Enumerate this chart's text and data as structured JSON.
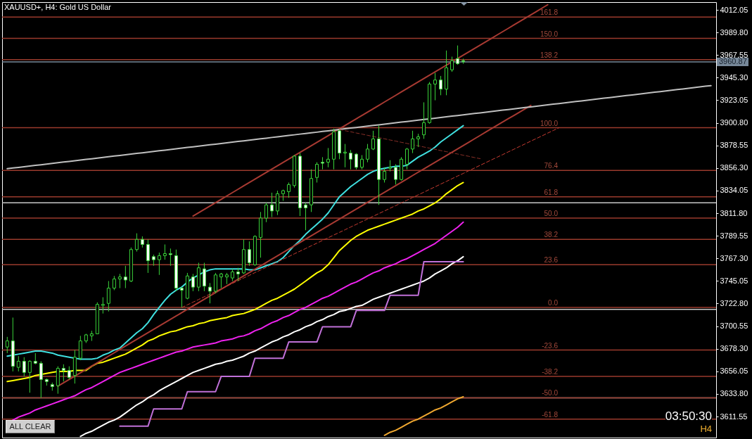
{
  "chart_data": {
    "type": "candlestick",
    "title": "XAUUSD+, H4: Gold US Dollar",
    "categories": [
      null,
      null,
      null,
      null,
      null,
      null,
      null,
      null,
      null,
      null,
      null,
      null,
      null,
      null,
      null,
      null,
      null,
      null,
      null,
      null,
      null,
      null,
      null,
      null,
      null,
      null,
      null,
      null,
      null,
      null,
      null,
      null,
      null,
      null,
      null,
      null,
      null,
      null,
      null,
      null,
      null,
      null,
      null,
      null,
      null,
      null,
      null,
      null,
      null,
      null,
      null,
      null,
      null,
      null,
      null,
      null,
      null,
      null,
      null,
      null,
      null,
      null,
      null,
      null,
      null,
      null,
      null,
      null,
      null,
      null,
      null,
      null,
      null,
      null,
      null,
      null,
      null,
      null,
      null,
      null,
      null,
      null,
      null,
      null,
      null,
      null,
      null,
      null,
      null,
      null,
      null,
      null,
      null,
      null,
      null,
      null,
      null,
      null,
      null,
      null,
      null,
      null,
      null,
      null,
      null,
      null,
      null,
      null,
      null,
      null,
      null,
      null,
      null,
      null,
      null,
      null,
      null,
      null,
      null,
      null,
      null,
      null,
      null,
      null,
      null,
      null
    ],
    "ohlc": [
      [
        3680,
        3690,
        3674,
        3686
      ],
      [
        3686,
        3709,
        3656,
        3661
      ],
      [
        3660,
        3671,
        3656,
        3666
      ],
      [
        3666,
        3670,
        3651,
        3655
      ],
      [
        3655,
        3667,
        3635,
        3666
      ],
      [
        3666,
        3674,
        3663,
        3664
      ],
      [
        3664,
        3666,
        3630,
        3648
      ],
      [
        3648,
        3649,
        3642,
        3646
      ],
      [
        3643,
        3645,
        3637,
        3641
      ],
      [
        3642,
        3661,
        3634,
        3659
      ],
      [
        3659,
        3663,
        3646,
        3657
      ],
      [
        3657,
        3661,
        3648,
        3650
      ],
      [
        3652,
        3677,
        3644,
        3670
      ],
      [
        3669,
        3691,
        3667,
        3686
      ],
      [
        3686,
        3693,
        3684,
        3692
      ],
      [
        3691,
        3696,
        3686,
        3693
      ],
      [
        3693,
        3724,
        3693,
        3722
      ],
      [
        3721,
        3729,
        3713,
        3722
      ],
      [
        3723,
        3745,
        3715,
        3738
      ],
      [
        3738,
        3750,
        3736,
        3747
      ],
      [
        3747,
        3752,
        3738,
        3749
      ],
      [
        3749,
        3760,
        3738,
        3746
      ],
      [
        3745,
        3778,
        3744,
        3776
      ],
      [
        3776,
        3792,
        3774,
        3786
      ],
      [
        3786,
        3789,
        3778,
        3781
      ],
      [
        3781,
        3786,
        3753,
        3765
      ],
      [
        3769,
        3771,
        3760,
        3766
      ],
      [
        3766,
        3773,
        3751,
        3770
      ],
      [
        3770,
        3781,
        3766,
        3772
      ],
      [
        3772,
        3777,
        3760,
        3771
      ],
      [
        3770,
        3776,
        3735,
        3738
      ],
      [
        3738,
        3739,
        3719,
        3736
      ],
      [
        3728,
        3753,
        3727,
        3750
      ],
      [
        3749,
        3752,
        3735,
        3739
      ],
      [
        3739,
        3763,
        3735,
        3758
      ],
      [
        3757,
        3763,
        3735,
        3740
      ],
      [
        3739,
        3743,
        3723,
        3735
      ],
      [
        3735,
        3753,
        3733,
        3751
      ],
      [
        3749,
        3753,
        3738,
        3752
      ],
      [
        3749,
        3753,
        3742,
        3751
      ],
      [
        3748,
        3757,
        3745,
        3754
      ],
      [
        3754,
        3758,
        3745,
        3752
      ],
      [
        3753,
        3786,
        3752,
        3776
      ],
      [
        3776,
        3784,
        3760,
        3763
      ],
      [
        3761,
        3790,
        3760,
        3789
      ],
      [
        3788,
        3813,
        3768,
        3807
      ],
      [
        3807,
        3822,
        3803,
        3820
      ],
      [
        3820,
        3832,
        3808,
        3814
      ],
      [
        3814,
        3834,
        3810,
        3831
      ],
      [
        3831,
        3835,
        3824,
        3834
      ],
      [
        3833,
        3842,
        3827,
        3840
      ],
      [
        3839,
        3869,
        3837,
        3868
      ],
      [
        3868,
        3871,
        3809,
        3817
      ],
      [
        3820,
        3822,
        3795,
        3817
      ],
      [
        3820,
        3855,
        3813,
        3846
      ],
      [
        3847,
        3862,
        3842,
        3860
      ],
      [
        3862,
        3867,
        3855,
        3861
      ],
      [
        3862,
        3876,
        3857,
        3865
      ],
      [
        3865,
        3895,
        3855,
        3892
      ],
      [
        3893,
        3894,
        3865,
        3871
      ],
      [
        3871,
        3880,
        3857,
        3872
      ],
      [
        3871,
        3874,
        3855,
        3865
      ],
      [
        3870,
        3871,
        3855,
        3857
      ],
      [
        3857,
        3869,
        3855,
        3865
      ],
      [
        3865,
        3880,
        3862,
        3875
      ],
      [
        3875,
        3893,
        3874,
        3885
      ],
      [
        3885,
        3898,
        3820,
        3845
      ],
      [
        3845,
        3857,
        3842,
        3853
      ],
      [
        3856,
        3864,
        3853,
        3857
      ],
      [
        3857,
        3860,
        3840,
        3845
      ],
      [
        3845,
        3867,
        3844,
        3865
      ],
      [
        3860,
        3876,
        3855,
        3875
      ],
      [
        3875,
        3893,
        3871,
        3885
      ],
      [
        3885,
        3890,
        3877,
        3887
      ],
      [
        3889,
        3921,
        3885,
        3901
      ],
      [
        3901,
        3941,
        3900,
        3939
      ],
      [
        3939,
        3950,
        3923,
        3943
      ],
      [
        3943,
        3947,
        3928,
        3934
      ],
      [
        3934,
        3972,
        3928,
        3955
      ],
      [
        3953,
        3966,
        3951,
        3962
      ],
      [
        3964,
        3977,
        3958,
        3959
      ],
      [
        3962,
        3964,
        3959,
        3961
      ],
      null,
      null,
      null,
      null,
      null,
      null,
      null,
      null,
      null,
      null,
      null,
      null,
      null,
      null,
      null,
      null,
      null,
      null,
      null,
      null,
      null,
      null,
      null,
      null,
      null,
      null,
      null,
      null,
      null,
      null,
      null,
      null,
      null,
      null,
      null,
      null,
      null,
      null,
      null,
      null,
      null,
      null,
      null,
      null
    ],
    "color": "#3ad43a",
    "colors": [
      "#000000",
      "#ffffff",
      "#000000",
      "#ffffff",
      "#000000",
      "#ffffff",
      "#ffffff",
      "#ffffff",
      "#ffffff",
      "#000000",
      "#ffffff",
      "#ffffff",
      "#000000",
      "#000000",
      "#000000",
      "#000000",
      "#000000",
      "#000000",
      "#000000",
      "#000000",
      "#000000",
      "#ffffff",
      "#000000",
      "#000000",
      "#ffffff",
      "#ffffff",
      "#ffffff",
      "#000000",
      "#000000",
      "#ffffff",
      "#ffffff",
      "#ffffff",
      "#000000",
      "#ffffff",
      "#000000",
      "#ffffff",
      "#ffffff",
      "#000000",
      "#000000",
      "#000000",
      "#000000",
      "#ffffff",
      "#000000",
      "#ffffff",
      "#000000",
      "#000000",
      "#000000",
      "#ffffff",
      "#000000",
      "#000000",
      "#000000",
      "#000000",
      "#ffffff",
      "#ffffff",
      "#000000",
      "#000000",
      "#ffffff",
      "#000000",
      "#000000",
      "#ffffff",
      "#000000",
      "#ffffff",
      "#ffffff",
      "#000000",
      "#000000",
      "#000000",
      "#ffffff",
      "#000000",
      "#000000",
      "#ffffff",
      "#000000",
      "#000000",
      "#000000",
      "#000000",
      "#000000",
      "#000000",
      "#000000",
      "#ffffff",
      "#000000",
      "#000000",
      "#ffffff",
      "#ffffff",
      null,
      null,
      null,
      null,
      null,
      null,
      null,
      null,
      null,
      null,
      null,
      null,
      null,
      null,
      null,
      null,
      null,
      null,
      null,
      null,
      null,
      null,
      null,
      null,
      null,
      null,
      null,
      null,
      null,
      null,
      null,
      null,
      null,
      null,
      null,
      null,
      null,
      null,
      null,
      null,
      null,
      null,
      null,
      null
    ],
    "series": [
      {
        "type": "line",
        "color": "#40e0e0",
        "values": [
          3671,
          3672,
          3673,
          3674,
          3675,
          3676,
          3676,
          3675,
          3674,
          3672,
          3671,
          3670,
          3669,
          3668,
          3668,
          3668,
          3669,
          3672,
          3674,
          3677,
          3679,
          3684,
          3689,
          3694,
          3698,
          3704,
          3712,
          3719,
          3726,
          3732,
          3736,
          3739,
          3744,
          3748,
          3751,
          3754,
          3756,
          3757,
          3757,
          3757,
          3757,
          3757,
          3757,
          3756,
          3756,
          3758,
          3760,
          3762,
          3764,
          3768,
          3774,
          3780,
          3785,
          3791,
          3796,
          3801,
          3806,
          3812,
          3820,
          3828,
          3833,
          3838,
          3842,
          3846,
          3850,
          3853,
          3855,
          3856,
          3857,
          3858,
          3858,
          3859,
          3863,
          3867,
          3870,
          3873,
          3877,
          3882,
          3886,
          3890,
          3894,
          3898,
          null,
          null,
          null,
          null,
          null,
          null,
          null,
          null,
          null,
          null,
          null,
          null,
          null,
          null,
          null,
          null,
          null,
          null,
          null,
          null,
          null,
          null,
          null,
          null,
          null,
          null,
          null,
          null,
          null,
          null,
          null,
          null,
          null,
          null,
          null,
          null,
          null,
          null,
          null,
          null,
          null,
          null,
          null,
          null
        ]
      },
      {
        "type": "line",
        "color": "#ffff00",
        "values": [
          3646,
          3647,
          3648,
          3649,
          3650,
          3652,
          3653,
          3654,
          3655,
          3656,
          3656,
          3656,
          3657,
          3657,
          3657,
          3661,
          3664,
          3665,
          3667,
          3669,
          3671,
          3673,
          3676,
          3679,
          3682,
          3686,
          3688,
          3691,
          3693,
          3695,
          3696,
          3698,
          3700,
          3701,
          3703,
          3704,
          3706,
          3707,
          3708,
          3709,
          3711,
          3712,
          3713,
          3715,
          3717,
          3720,
          3723,
          3726,
          3728,
          3731,
          3734,
          3737,
          3741,
          3745,
          3749,
          3753,
          3756,
          3761,
          3768,
          3775,
          3780,
          3785,
          3789,
          3792,
          3795,
          3797,
          3799,
          3801,
          3803,
          3805,
          3807,
          3809,
          3811,
          3814,
          3816,
          3819,
          3822,
          3826,
          3831,
          3835,
          3839,
          3842,
          null,
          null,
          null,
          null,
          null,
          null,
          null,
          null,
          null,
          null,
          null,
          null,
          null,
          null,
          null,
          null,
          null,
          null,
          null,
          null,
          null,
          null,
          null,
          null,
          null,
          null,
          null,
          null,
          null,
          null,
          null,
          null,
          null,
          null,
          null,
          null,
          null,
          null,
          null,
          null,
          null,
          null,
          null,
          null
        ]
      },
      {
        "type": "line",
        "color": "#ee22ee",
        "values": [
          null,
          3608,
          3611,
          3613,
          3615,
          3618,
          3620,
          3622,
          3624,
          3626,
          3628,
          3630,
          3632,
          3635,
          3638,
          3640,
          3643,
          3646,
          3649,
          3652,
          3655,
          3657,
          3659,
          3661,
          3663,
          3665,
          3667,
          3669,
          3671,
          3673,
          3675,
          3676,
          3678,
          3680,
          3681,
          3682,
          3683,
          3684,
          3686,
          3687,
          3688,
          3690,
          3691,
          3693,
          3696,
          3698,
          3701,
          3704,
          3706,
          3709,
          3711,
          3714,
          3717,
          3719,
          3722,
          3725,
          3728,
          3730,
          3733,
          3736,
          3739,
          3742,
          3744,
          3747,
          3750,
          3753,
          3755,
          3758,
          3760,
          3762,
          3765,
          3767,
          3770,
          3773,
          3776,
          3779,
          3782,
          3786,
          3790,
          3794,
          3798,
          3803,
          null,
          null,
          null,
          null,
          null,
          null,
          null,
          null,
          null,
          null,
          null,
          null,
          null,
          null,
          null,
          null,
          null,
          null,
          null,
          null,
          null,
          null,
          null,
          null,
          null,
          null,
          null,
          null,
          null,
          null,
          null,
          null,
          null,
          null,
          null,
          null,
          null,
          null,
          null,
          null,
          null,
          null,
          null,
          null
        ]
      },
      {
        "type": "line",
        "color": "#ffffff",
        "values": [
          null,
          null,
          null,
          null,
          null,
          null,
          null,
          null,
          null,
          null,
          null,
          null,
          null,
          3592,
          3595,
          3597,
          3600,
          3603,
          3606,
          3608,
          3611,
          3615,
          3619,
          3623,
          3626,
          3630,
          3633,
          3637,
          3640,
          3643,
          3646,
          3649,
          3652,
          3655,
          3657,
          3659,
          3661,
          3663,
          3664,
          3666,
          3667,
          3669,
          3671,
          3674,
          3676,
          3679,
          3682,
          3685,
          3687,
          3690,
          3692,
          3695,
          3697,
          3700,
          3702,
          3705,
          3707,
          3710,
          3712,
          3715,
          3716,
          3718,
          3720,
          3721,
          3724,
          3727,
          3729,
          3731,
          3733,
          3735,
          3737,
          3739,
          3741,
          3743,
          3745,
          3748,
          3752,
          3755,
          3758,
          3762,
          3765,
          3769,
          null,
          null,
          null,
          null,
          null,
          null,
          null,
          null,
          null,
          null,
          null,
          null,
          null,
          null,
          null,
          null,
          null,
          null,
          null,
          null,
          null,
          null,
          null,
          null,
          null,
          null,
          null,
          null,
          null,
          null,
          null,
          null,
          null,
          null,
          null,
          null,
          null,
          null,
          null,
          null,
          null,
          null,
          null,
          null
        ]
      },
      {
        "type": "line",
        "color": "#c070d8",
        "values": [
          null,
          null,
          null,
          null,
          null,
          null,
          null,
          null,
          null,
          null,
          null,
          null,
          null,
          null,
          null,
          null,
          null,
          null,
          null,
          null,
          3602,
          3602,
          3602,
          3602,
          3602,
          3602,
          3619,
          3619,
          3619,
          3619,
          3619,
          3619,
          3636,
          3636,
          3636,
          3636,
          3636,
          3636,
          3651,
          3651,
          3651,
          3651,
          3651,
          3651,
          3669,
          3669,
          3669,
          3669,
          3669,
          3669,
          3685,
          3685,
          3685,
          3685,
          3685,
          3685,
          3700,
          3700,
          3700,
          3700,
          3700,
          3700,
          3716,
          3716,
          3716,
          3716,
          3716,
          3716,
          3731,
          3731,
          3731,
          3731,
          3731,
          3731,
          3764,
          3764,
          3764,
          3764,
          3764,
          3764,
          3764,
          3764,
          null,
          null,
          null,
          null,
          null,
          null,
          null,
          null,
          null,
          null,
          null,
          null,
          null,
          null,
          null,
          null,
          null,
          null,
          null,
          null,
          null,
          null,
          null,
          null,
          null,
          null,
          null,
          null,
          null,
          null,
          null,
          null,
          null,
          null,
          null,
          null,
          null,
          null,
          null,
          null,
          null,
          null,
          null,
          null
        ]
      },
      {
        "type": "line",
        "color": "#f0a830",
        "values": [
          null,
          null,
          null,
          null,
          null,
          null,
          null,
          null,
          null,
          null,
          null,
          null,
          null,
          null,
          null,
          null,
          null,
          null,
          null,
          null,
          null,
          null,
          null,
          null,
          null,
          null,
          null,
          null,
          null,
          null,
          null,
          null,
          null,
          null,
          null,
          null,
          null,
          null,
          null,
          null,
          null,
          null,
          null,
          null,
          null,
          null,
          null,
          null,
          null,
          null,
          null,
          null,
          null,
          null,
          null,
          null,
          null,
          null,
          null,
          null,
          null,
          null,
          null,
          null,
          null,
          null,
          null,
          3593,
          3596,
          3598,
          3601,
          3604,
          3607,
          3609,
          3612,
          3615,
          3618,
          3620,
          3623,
          3626,
          3629,
          3631,
          null,
          null,
          null,
          null,
          null,
          null,
          null,
          null,
          null,
          null,
          null,
          null,
          null,
          null,
          null,
          null,
          null,
          null,
          null,
          null,
          null,
          null,
          null,
          null,
          null,
          null,
          null,
          null,
          null,
          null,
          null,
          null,
          null,
          null,
          null,
          null,
          null,
          null,
          null,
          null,
          null,
          null,
          null,
          null
        ]
      },
      {
        "type": "line",
        "color": "#a83a32",
        "values": [
          null,
          null,
          null,
          null,
          null,
          null,
          null,
          null,
          null,
          null,
          null,
          null,
          null,
          null,
          null,
          null,
          null,
          null,
          null,
          null,
          null,
          null,
          null,
          null,
          null,
          null,
          null,
          null,
          null,
          null,
          null,
          null,
          null,
          3809.0,
          3812.3,
          3815.6,
          3818.9,
          3822.2,
          3825.5,
          3828.8,
          3832.1,
          3835.4,
          3838.7,
          3842.0,
          3845.3,
          3848.6,
          3851.9,
          3855.2,
          3858.5,
          3861.8,
          3865.1,
          3868.4,
          3871.7,
          3875.0,
          3878.3,
          3881.6,
          3884.9,
          3888.2,
          3891.6,
          3894.9,
          3898.2,
          3901.5,
          3904.8,
          3908.1,
          3911.4,
          3914.7,
          3918.0,
          3921.3,
          3924.6,
          3927.9,
          3931.2,
          3934.5,
          3937.8,
          3941.1,
          3944.4,
          3947.7,
          3951.0,
          3954.3,
          3957.6,
          3960.9,
          3964.2,
          3967.5,
          3970.8,
          3974.1,
          3977.4,
          3980.7,
          3984.0,
          3987.3,
          3990.6,
          3993.9,
          3997.3,
          4000.6,
          4003.9,
          4007.2,
          4010.5,
          4013.8,
          4017.1,
          null,
          null,
          null,
          null,
          null,
          null,
          null,
          null,
          null,
          null,
          null,
          null,
          null,
          null,
          null,
          null,
          null,
          null,
          null,
          null,
          null,
          null,
          null,
          null,
          null,
          null,
          null,
          null,
          null
        ]
      },
      {
        "type": "line",
        "color": "#a83a32",
        "values": [
          null,
          null,
          null,
          null,
          null,
          null,
          null,
          null,
          null,
          3641.4,
          3644.7,
          3648.0,
          3651.3,
          3654.6,
          3657.9,
          3661.2,
          3664.5,
          3667.7,
          3671.0,
          3674.3,
          3677.6,
          3680.9,
          3684.2,
          3687.5,
          3690.8,
          3694.1,
          3697.4,
          3700.7,
          3704.0,
          3707.3,
          3710.6,
          3713.8,
          3717.1,
          3720.4,
          3723.7,
          3727.0,
          3730.3,
          3733.6,
          3736.9,
          3740.2,
          3743.5,
          3746.8,
          3750.1,
          3753.4,
          3756.7,
          3759.9,
          3763.2,
          3766.5,
          3769.8,
          3773.1,
          3776.4,
          3779.7,
          3783.0,
          3786.3,
          3789.6,
          3792.9,
          3796.2,
          3799.5,
          3802.8,
          3806.1,
          3809.3,
          3812.6,
          3815.9,
          3819.2,
          3822.5,
          3825.8,
          3829.1,
          3832.4,
          3835.7,
          3839.0,
          3842.3,
          3845.6,
          3848.9,
          3852.2,
          3855.4,
          3858.7,
          3862.0,
          3865.3,
          3868.6,
          3871.9,
          3875.2,
          3878.5,
          3881.8,
          3885.1,
          3888.4,
          3891.7,
          3895.0,
          3898.3,
          3901.6,
          3904.9,
          3908.1,
          3911.4,
          3914.7,
          3918.0,
          null,
          null,
          null,
          null,
          null,
          null,
          null,
          null,
          null,
          null,
          null,
          null,
          null,
          null,
          null,
          null,
          null,
          null,
          null,
          null,
          null,
          null,
          null,
          null,
          null,
          null,
          null,
          null,
          null,
          null,
          null,
          null
        ]
      },
      {
        "type": "line",
        "color": "#c0c0c0",
        "values": [
          3855.6,
          3856.3,
          3856.9,
          3857.6,
          3858.2,
          3858.9,
          3859.5,
          3860.2,
          3860.8,
          3861.5,
          3862.2,
          3862.8,
          3863.5,
          3864.1,
          3864.8,
          3865.4,
          3866.1,
          3866.7,
          3867.4,
          3868.1,
          3868.7,
          3869.4,
          3870.0,
          3870.7,
          3871.3,
          3872.0,
          3872.6,
          3873.3,
          3873.9,
          3874.6,
          3875.3,
          3875.9,
          3876.6,
          3877.2,
          3877.9,
          3878.5,
          3879.2,
          3879.8,
          3880.5,
          3881.2,
          3881.8,
          3882.5,
          3883.1,
          3883.8,
          3884.4,
          3885.1,
          3885.7,
          3886.4,
          3887.0,
          3887.7,
          3888.4,
          3889.0,
          3889.7,
          3890.3,
          3891.0,
          3891.6,
          3892.3,
          3892.9,
          3893.6,
          3894.3,
          3894.9,
          3895.6,
          3896.2,
          3896.9,
          3897.5,
          3898.2,
          3898.8,
          3899.5,
          3900.2,
          3900.8,
          3901.5,
          3902.1,
          3902.8,
          3903.4,
          3904.1,
          3904.7,
          3905.4,
          3906.1,
          3906.7,
          3907.4,
          3908.0,
          3908.7,
          3909.3,
          3910.0,
          3910.6,
          3911.3,
          3911.9,
          3912.6,
          3913.3,
          3913.9,
          3914.6,
          3915.2,
          3915.9,
          3916.5,
          3917.2,
          3917.9,
          3918.5,
          3919.2,
          3919.8,
          3920.5,
          3921.1,
          3921.8,
          3922.4,
          3923.1,
          3923.8,
          3924.4,
          3925.1,
          3925.7,
          3926.4,
          3927.0,
          3927.7,
          3928.3,
          3929.0,
          3929.6,
          3930.3,
          3931.0,
          3931.6,
          3932.3,
          3932.9,
          3933.6,
          3934.2,
          3934.9,
          3935.5,
          3936.2,
          3936.9,
          3937.5
        ]
      },
      {
        "type": "line",
        "color": "#c83c32",
        "line_style": "dashed",
        "values": [
          null,
          null,
          null,
          null,
          null,
          null,
          null,
          null,
          null,
          null,
          null,
          null,
          null,
          null,
          null,
          null,
          null,
          null,
          null,
          null,
          null,
          null,
          null,
          null,
          null,
          null,
          null,
          null,
          null,
          null,
          null,
          3718.9,
          3721.5,
          3724.2,
          3726.8,
          3729.5,
          3732.1,
          3734.8,
          3737.4,
          3740.0,
          3742.7,
          3745.3,
          3748.0,
          3750.6,
          3753.3,
          3755.9,
          3758.5,
          3761.2,
          3763.8,
          3766.5,
          3769.1,
          3771.8,
          3774.4,
          3777.0,
          3779.7,
          3782.3,
          3785.0,
          3787.6,
          3790.3,
          3792.9,
          3795.5,
          3798.2,
          3800.8,
          3803.5,
          3806.1,
          3808.8,
          3811.4,
          3814.0,
          3816.7,
          3819.3,
          3822.0,
          3824.6,
          3827.3,
          3829.9,
          3832.5,
          3835.2,
          3837.8,
          3840.5,
          3843.1,
          3845.8,
          3848.4,
          3851.0,
          3853.7,
          3856.3,
          3859.0,
          3861.6,
          3864.3,
          3866.9,
          3869.5,
          3872.2,
          3874.8,
          3877.5,
          3880.1,
          3882.8,
          3885.4,
          3888.0,
          3890.7,
          3893.3,
          3896.0,
          null,
          null,
          null,
          null,
          null,
          null,
          null,
          null,
          null,
          null,
          null,
          null,
          null,
          null,
          null,
          null,
          null,
          null,
          null,
          null,
          null,
          null,
          null,
          null,
          null,
          null,
          null
        ]
      },
      {
        "type": "line",
        "color": "#8a3028",
        "line_style": "dashed",
        "values": [
          null,
          null,
          null,
          null,
          null,
          null,
          null,
          null,
          null,
          null,
          null,
          null,
          null,
          null,
          null,
          null,
          null,
          null,
          null,
          null,
          null,
          null,
          null,
          null,
          null,
          null,
          null,
          null,
          null,
          null,
          null,
          null,
          null,
          null,
          null,
          null,
          null,
          null,
          null,
          null,
          null,
          null,
          null,
          null,
          null,
          null,
          null,
          null,
          null,
          null,
          null,
          null,
          null,
          null,
          null,
          null,
          null,
          null,
          null,
          3894.3,
          3893.1,
          3892.0,
          3890.8,
          3889.7,
          3888.5,
          3887.4,
          3886.2,
          3885.1,
          3883.9,
          3882.8,
          3881.6,
          3880.5,
          3879.3,
          3878.2,
          3877.0,
          3875.9,
          3874.7,
          3873.5,
          3872.4,
          3871.2,
          3870.1,
          3868.9,
          3867.8,
          3866.6,
          3865.5,
          null,
          null,
          null,
          null,
          null,
          null,
          null,
          null,
          null,
          null,
          null,
          null,
          null,
          null,
          null,
          null,
          null,
          null,
          null,
          null,
          null,
          null,
          null,
          null,
          null,
          null,
          null,
          null,
          null,
          null,
          null,
          null,
          null,
          null,
          null,
          null,
          null,
          null,
          null,
          null,
          null
        ]
      }
    ],
    "ylim": [
      3590.8,
      4019.7
    ],
    "yticks": [
      4012.05,
      {
        "value": 3989.8,
        "label": "3989.80"
      },
      3967.55,
      {
        "value": 3945.3,
        "label": "3945.30"
      },
      3923.05,
      {
        "value": 3900.8,
        "label": "3900.80"
      },
      3878.55,
      {
        "value": 3856.3,
        "label": "3856.30"
      },
      3834.05,
      {
        "value": 3811.8,
        "label": "3811.80"
      },
      3789.55,
      {
        "value": 3767.3,
        "label": "3767.30"
      },
      3745.05,
      {
        "value": 3722.8,
        "label": "3722.80"
      },
      3700.55,
      {
        "value": 3678.3,
        "label": "3678.30"
      },
      3656.05,
      {
        "value": 3633.8,
        "label": "3633.80"
      },
      3611.55
    ],
    "ref_lines": [
      {
        "axis": "y",
        "value": 3960.87,
        "label": "3960.87",
        "color": "#778899"
      },
      {
        "axis": "y",
        "value": 3822,
        "color": "#c8c8c8"
      },
      {
        "axis": "y",
        "value": 3717,
        "color": "#c8c8c8"
      },
      {
        "axis": "y",
        "value": 3630,
        "color": "#c8c8c8"
      },
      {
        "axis": "y",
        "value": 4005,
        "color": "#9a3a2c"
      },
      {
        "axis": "y",
        "value": 3984,
        "color": "#9a3a2c"
      },
      {
        "axis": "y",
        "value": 3963,
        "color": "#9a3a2c"
      },
      {
        "axis": "y",
        "value": 3896,
        "color": "#9a3a2c"
      },
      {
        "axis": "y",
        "value": 3854,
        "color": "#9a3a2c"
      },
      {
        "axis": "y",
        "value": 3828,
        "color": "#9a3a2c"
      },
      {
        "axis": "y",
        "value": 3807,
        "color": "#9a3a2c"
      },
      {
        "axis": "y",
        "value": 3786,
        "color": "#9a3a2c"
      },
      {
        "axis": "y",
        "value": 3761,
        "color": "#9a3a2c"
      },
      {
        "axis": "y",
        "value": 3719,
        "color": "#9a3a2c"
      },
      {
        "axis": "y",
        "value": 3677,
        "color": "#9a3a2c"
      },
      {
        "axis": "y",
        "value": 3651,
        "color": "#9a3a2c"
      },
      {
        "axis": "y",
        "value": 3630,
        "color": "#9a3a2c"
      },
      {
        "axis": "y",
        "value": 3609,
        "color": "#9a3a2c"
      }
    ],
    "annotations": [
      "ALL CLEAR",
      "03:50:30",
      "H4",
      {
        "text": "161.8",
        "y": 4005
      },
      {
        "text": "150.0",
        "y": 3984
      },
      {
        "text": "138.2",
        "y": 3963
      },
      {
        "text": "100.0",
        "y": 3896
      },
      {
        "text": "76.4",
        "y": 3854
      },
      {
        "text": "61.8",
        "y": 3828
      },
      {
        "text": "50.0",
        "y": 3807
      },
      {
        "text": "38.2",
        "y": 3786
      },
      {
        "text": "23.6",
        "y": 3761
      },
      {
        "text": "0.0",
        "y": 3719
      },
      {
        "text": "-23.6",
        "y": 3677
      },
      {
        "text": "-38.2",
        "y": 3651
      },
      {
        "text": "-50.0",
        "y": 3630
      },
      {
        "text": "-61.8",
        "y": 3609
      }
    ],
    "tick_labels": "y"
  }
}
